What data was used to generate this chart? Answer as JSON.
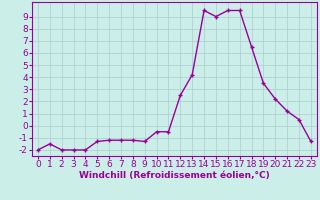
{
  "x": [
    0,
    1,
    2,
    3,
    4,
    5,
    6,
    7,
    8,
    9,
    10,
    11,
    12,
    13,
    14,
    15,
    16,
    17,
    18,
    19,
    20,
    21,
    22,
    23
  ],
  "y": [
    -2,
    -1.5,
    -2,
    -2,
    -2,
    -1.3,
    -1.2,
    -1.2,
    -1.2,
    -1.3,
    -0.5,
    -0.5,
    2.5,
    4.2,
    9.5,
    9.0,
    9.5,
    9.5,
    6.5,
    3.5,
    2.2,
    1.2,
    0.5,
    -1.3
  ],
  "line_color": "#990099",
  "marker": "+",
  "bg_color": "#cceee8",
  "grid_color": "#aacccc",
  "xlabel": "Windchill (Refroidissement éolien,°C)",
  "ylim": [
    -2.5,
    10.2
  ],
  "xlim": [
    -0.5,
    23.5
  ],
  "yticks": [
    -2,
    -1,
    0,
    1,
    2,
    3,
    4,
    5,
    6,
    7,
    8,
    9
  ],
  "xticks": [
    0,
    1,
    2,
    3,
    4,
    5,
    6,
    7,
    8,
    9,
    10,
    11,
    12,
    13,
    14,
    15,
    16,
    17,
    18,
    19,
    20,
    21,
    22,
    23
  ],
  "xlabel_fontsize": 6.5,
  "tick_fontsize": 6.5,
  "line_width": 1.0,
  "marker_size": 3.5,
  "marker_ew": 1.0
}
